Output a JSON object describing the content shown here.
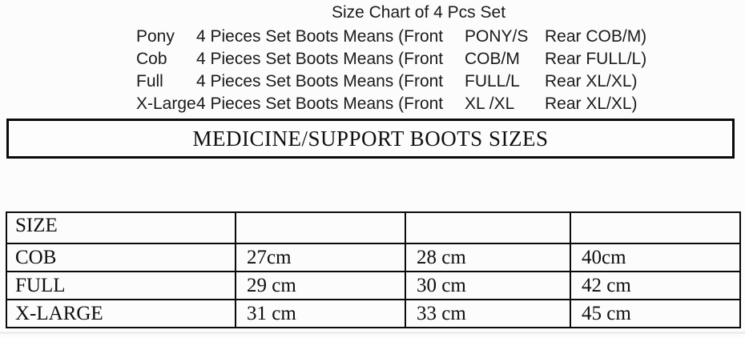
{
  "header": {
    "title": "Size Chart of 4 Pcs Set"
  },
  "set_chart": {
    "rows": [
      {
        "size": "Pony",
        "text": "4 Pieces Set Boots Means (Front",
        "front": "PONY/S",
        "rear": "Rear COB/M)"
      },
      {
        "size": "Cob",
        "text": "4 Pieces Set Boots Means (Front",
        "front": "COB/M",
        "rear": "Rear FULL/L)"
      },
      {
        "size": "Full",
        "text": "4 Pieces Set Boots Means (Front",
        "front": "FULL/L",
        "rear": "Rear XL/XL)"
      },
      {
        "size": "X-Large",
        "text": "4 Pieces Set Boots Means (Front",
        "front": "XL /XL",
        "rear": "Rear XL/XL)"
      }
    ]
  },
  "banner": {
    "title": "MEDICINE/SUPPORT BOOTS SIZES"
  },
  "boots_table": {
    "header_row": [
      "SIZE",
      "",
      "",
      ""
    ],
    "rows": [
      [
        "COB",
        "27cm",
        "28 cm",
        "40cm"
      ],
      [
        "FULL",
        "29 cm",
        "30 cm",
        "42 cm"
      ],
      [
        "X-LARGE",
        "31 cm",
        "33 cm",
        "45 cm"
      ]
    ]
  },
  "colors": {
    "border": "#0a0a0a",
    "text": "#161616",
    "background": "#fcfcfc"
  }
}
